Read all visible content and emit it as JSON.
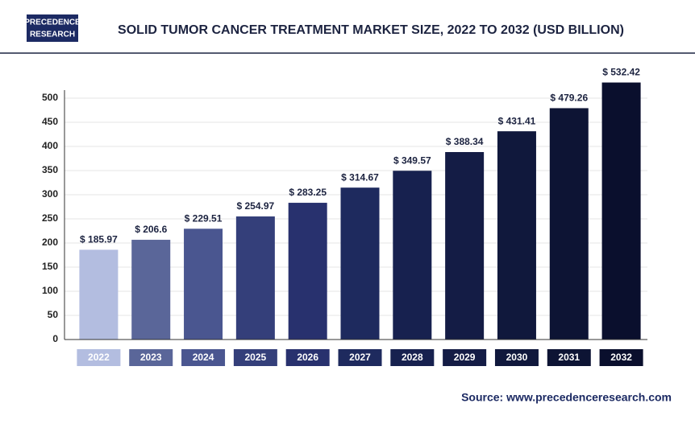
{
  "chart_data": {
    "type": "bar",
    "title": "SOLID TUMOR CANCER TREATMENT MARKET SIZE, 2022 TO 2032 (USD BILLION)",
    "logo": [
      "PRECEDENCE",
      "RESEARCH"
    ],
    "source": "Source: www.precedenceresearch.com",
    "categories": [
      "2022",
      "2023",
      "2024",
      "2025",
      "2026",
      "2027",
      "2028",
      "2029",
      "2030",
      "2031",
      "2032"
    ],
    "values": [
      185.97,
      206.6,
      229.51,
      254.97,
      283.25,
      314.67,
      349.57,
      388.34,
      431.41,
      479.26,
      532.42
    ],
    "value_labels": [
      "$ 185.97",
      "$ 206.6",
      "$ 229.51",
      "$ 254.97",
      "$ 283.25",
      "$ 314.67",
      "$ 349.57",
      "$ 388.34",
      "$ 431.41",
      "$ 479.26",
      "$ 532.42"
    ],
    "colors": [
      "#b3bde0",
      "#5a6699",
      "#4a5690",
      "#343f7a",
      "#28316e",
      "#1e2a5e",
      "#17214f",
      "#141c45",
      "#10183c",
      "#0d1434",
      "#0a0f2d"
    ],
    "ylim": [
      0,
      550
    ],
    "yticks": [
      0,
      50,
      100,
      150,
      200,
      250,
      300,
      350,
      400,
      450,
      500
    ],
    "grid": true
  }
}
